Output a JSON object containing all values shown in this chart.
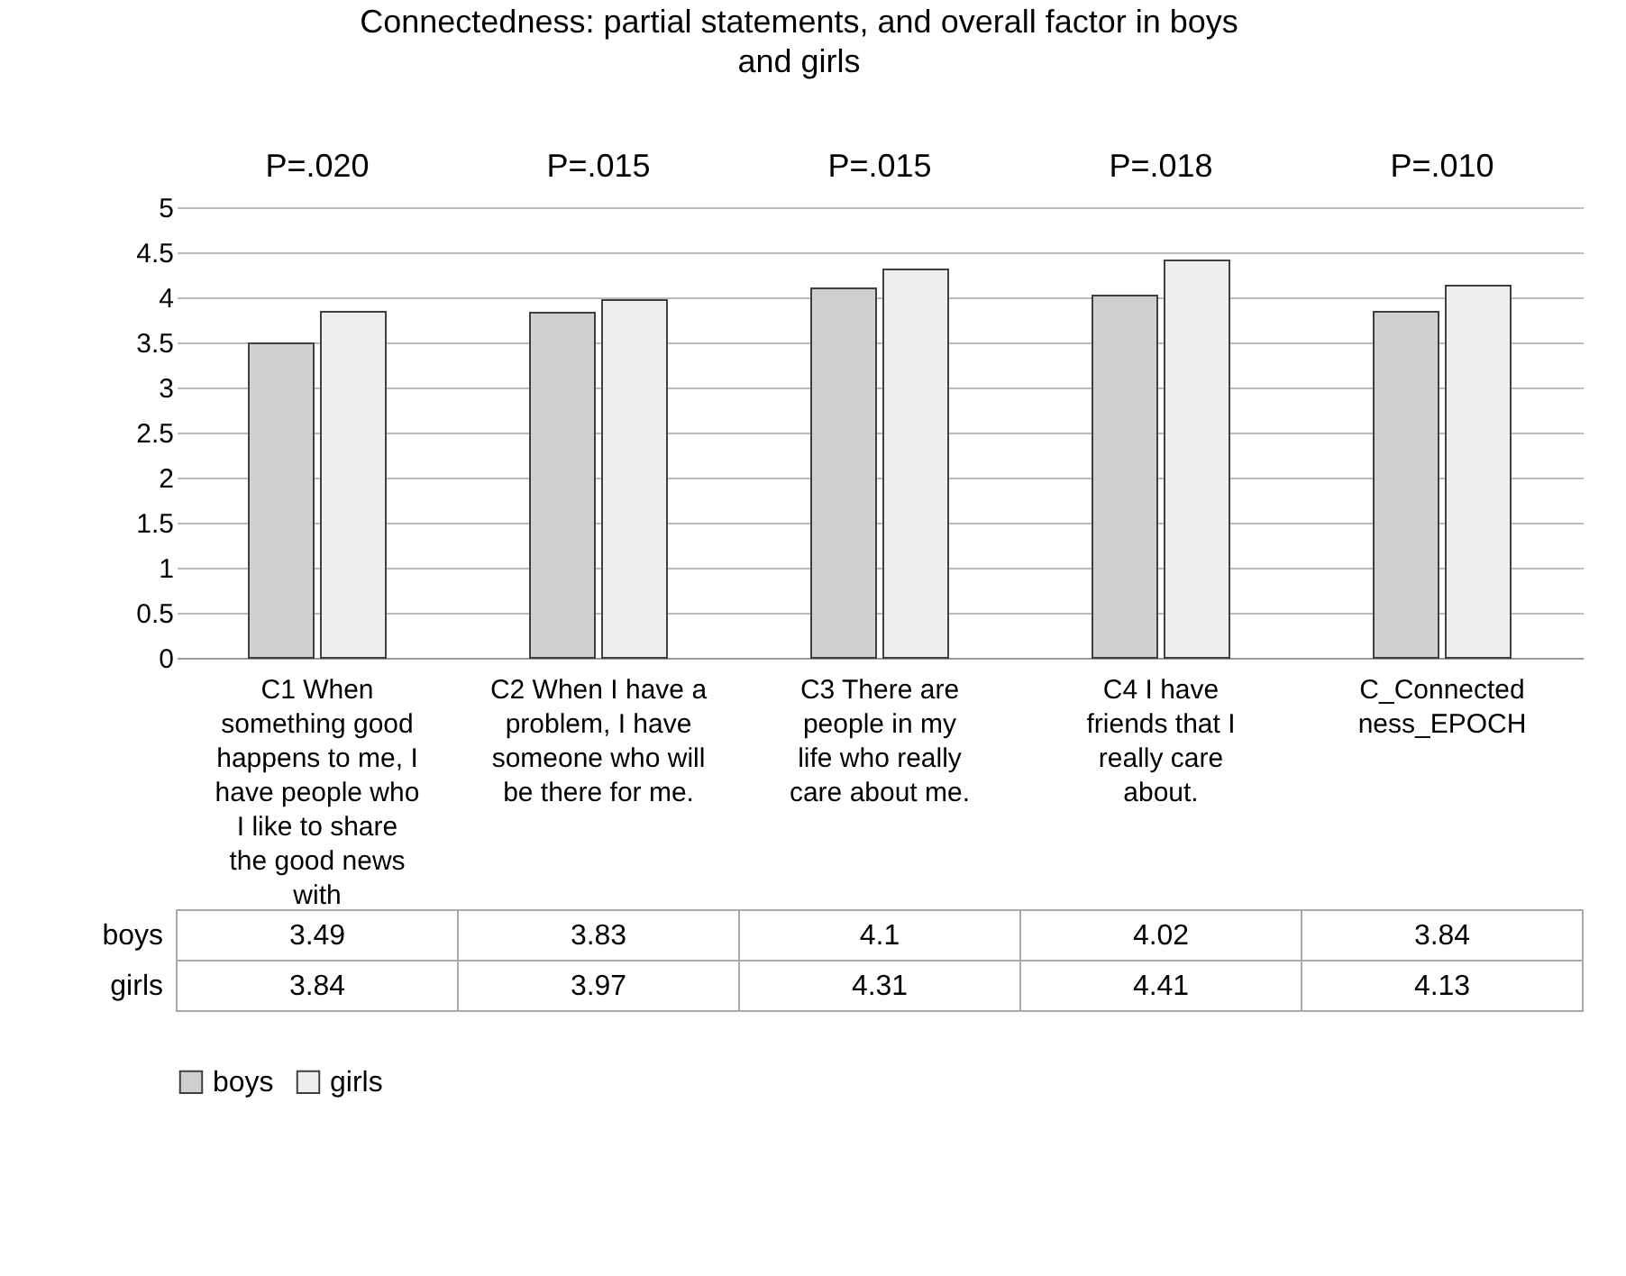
{
  "chart_data": {
    "type": "bar",
    "title": "Connectedness: partial statements, and overall factor in boys and girls",
    "categories": [
      "C1 When something good happens to me, I have people who I like to share the good news with",
      "C2 When I have a problem, I have someone who will be there for me.",
      "C3 There are people in my life who really care about me.",
      "C4  I have friends that I really care about.",
      "C_Connectedness_EPOCH"
    ],
    "series": [
      {
        "name": "boys",
        "color": "#d0cece",
        "values": [
          3.49,
          3.83,
          4.1,
          4.02,
          3.84
        ]
      },
      {
        "name": "girls",
        "color": "#efeded",
        "values": [
          3.84,
          3.97,
          4.31,
          4.41,
          4.13
        ]
      }
    ],
    "ylim": [
      0,
      5
    ],
    "yticks": [
      0,
      0.5,
      1,
      1.5,
      2,
      2.5,
      3,
      3.5,
      4,
      4.5,
      5
    ],
    "grid": "y",
    "legend": "bottom",
    "data_labels": true,
    "annotations": [
      "P=.020",
      "P=.015",
      "P=.015",
      "P=.018",
      "P=.010"
    ]
  }
}
